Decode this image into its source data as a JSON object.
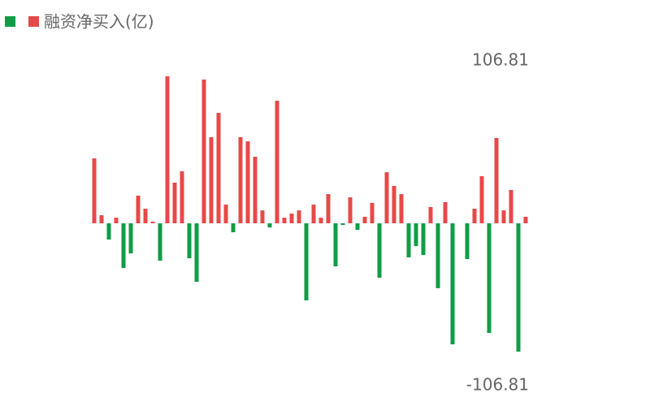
{
  "chart_data": {
    "type": "bar",
    "legend_label": "融资净买入(亿)",
    "positive_color": "#e84848",
    "negative_color": "#0f9d45",
    "ylim": [
      -106.81,
      106.81
    ],
    "yticks": [
      -106.81,
      106.81
    ],
    "values": [
      42.7,
      5.3,
      -10.7,
      3.7,
      -29.4,
      -19.8,
      18.2,
      9.6,
      1.1,
      -24.6,
      96.7,
      26.7,
      34.2,
      -23,
      -38.5,
      94.6,
      56.6,
      72.6,
      12.3,
      -5.9,
      56.6,
      53.9,
      43.8,
      8.5,
      -2.7,
      80.6,
      3.7,
      6.4,
      8.5,
      -50.7,
      12.3,
      3.7,
      19.2,
      -28.3,
      -1.1,
      17.1,
      -4.3,
      4.3,
      13.4,
      -35.8,
      33.6,
      24.6,
      19.2,
      -22.4,
      -15,
      -20.8,
      10.7,
      -42.7,
      13.9,
      -79.6,
      0,
      -23.5,
      9.6,
      31,
      -72.1,
      56.1,
      8.5,
      21.9,
      -84.4,
      4.3
    ]
  }
}
